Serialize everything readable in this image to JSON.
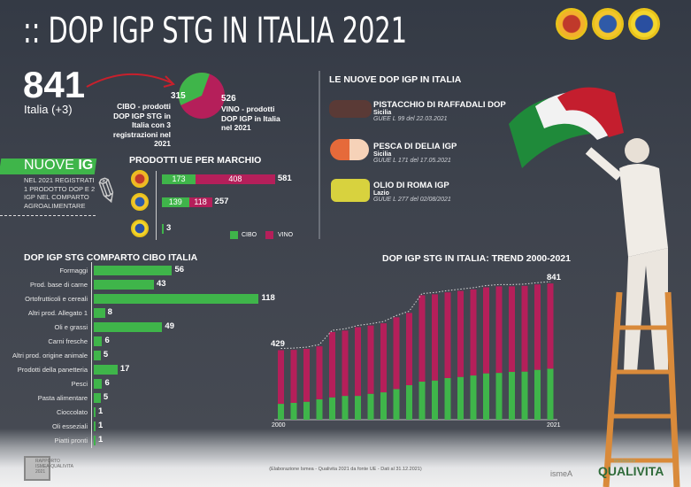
{
  "title": ":: DOP IGP STG IN ITALIA 2021",
  "colors": {
    "cibo": "#3fb54a",
    "vino": "#b51f5a",
    "background": "#3a3f4a"
  },
  "seals": [
    "DOP",
    "IGP",
    "STG"
  ],
  "summary": {
    "total": "841",
    "total_label": "Italia (+3)",
    "cibo_value": "315",
    "cibo_text": "CIBO - prodotti DOP IGP STG in Italia con 3 registrazioni nel 2021",
    "vino_value": "526",
    "vino_text": "VINO - prodotti DOP IGP in Italia nel 2021",
    "pie": {
      "cibo": 315,
      "vino": 526
    }
  },
  "nuove_ig": {
    "heading_a": "NUOVE ",
    "heading_b": "IG",
    "text": "NEL 2021 REGISTRATI 1 PRODOTTO DOP E 2 IGP NEL COMPARTO AGROALIMENTARE"
  },
  "nuove": {
    "title": "LE NUOVE DOP IGP IN ITALIA",
    "items": [
      {
        "name": "PISTACCHIO DI RAFFADALI DOP",
        "region": "Sicilia",
        "ref": "GUEE L 99 del 22.03.2021"
      },
      {
        "name": "PESCA DI DELIA IGP",
        "region": "Sicilia",
        "ref": "GUUE L 171 del 17.05.2021"
      },
      {
        "name": "OLIO DI ROMA IGP",
        "region": "Lazio",
        "ref": "GUUE L 277 del 02/08/2021"
      }
    ]
  },
  "marchio": {
    "title": "PRODOTTI UE PER MARCHIO",
    "legend_cibo": "CIBO",
    "legend_vino": "VINO",
    "rows": [
      {
        "seal": "DOP",
        "cibo": 173,
        "vino": 408,
        "total": "581",
        "cibo_label": "173",
        "vino_label": "408"
      },
      {
        "seal": "IGP",
        "cibo": 139,
        "vino": 118,
        "total": "257",
        "cibo_label": "139",
        "vino_label": "118"
      },
      {
        "seal": "STG",
        "cibo": 3,
        "vino": 0,
        "total": "3",
        "cibo_label": "",
        "vino_label": ""
      }
    ]
  },
  "chart_data": [
    {
      "type": "bar",
      "title": "DOP IGP STG COMPARTO CIBO ITALIA",
      "orientation": "horizontal",
      "categories": [
        "Formaggi",
        "Prod. base di carne",
        "Ortofrutticoli e cereali",
        "Altri prod. Allegato 1",
        "Oli e grassi",
        "Carni fresche",
        "Altri prod. origine animale",
        "Prodotti della panetteria",
        "Pesci",
        "Pasta alimentare",
        "Cioccolato",
        "Oli esseziali",
        "Piatti pronti"
      ],
      "values": [
        56,
        43,
        118,
        8,
        49,
        6,
        5,
        17,
        6,
        5,
        1,
        1,
        1
      ],
      "labels": [
        "56",
        "43",
        "118",
        "8",
        "49",
        "6",
        "5",
        "17",
        "6",
        "5",
        "1",
        "1",
        "1"
      ]
    },
    {
      "type": "bar",
      "stacked": true,
      "title": "DOP IGP STG IN ITALIA: TREND 2000-2021",
      "x": [
        2000,
        2001,
        2002,
        2003,
        2004,
        2005,
        2006,
        2007,
        2008,
        2009,
        2010,
        2011,
        2012,
        2013,
        2014,
        2015,
        2016,
        2017,
        2018,
        2019,
        2020,
        2021
      ],
      "x_tick_labels": [
        "2000",
        "2021"
      ],
      "series": [
        {
          "values": [
            98,
            104,
            111,
            126,
            138,
            147,
            147,
            160,
            169,
            189,
            213,
            235,
            242,
            257,
            264,
            273,
            286,
            289,
            295,
            297,
            308,
            315
          ]
        },
        {
          "values": [
            331,
            327,
            326,
            327,
            403,
            403,
            424,
            421,
            426,
            443,
            446,
            533,
            532,
            529,
            531,
            531,
            531,
            534,
            528,
            529,
            527,
            526
          ]
        }
      ],
      "totals": [
        429,
        431,
        437,
        453,
        541,
        550,
        571,
        581,
        595,
        632,
        659,
        768,
        774,
        786,
        795,
        804,
        817,
        823,
        823,
        826,
        835,
        841
      ],
      "first_label": "429",
      "last_label": "841"
    }
  ],
  "footer": {
    "note": "(Elaborazione Ismea - Qualivita 2021 da fonte UE - Dati al 31.12.2021)",
    "report": "RAPPORTO ISMEA-QUALIVITA 2021",
    "ismea": "ismeA",
    "qualivita": "QUALIVITA",
    "fondazione": "fondazione"
  }
}
